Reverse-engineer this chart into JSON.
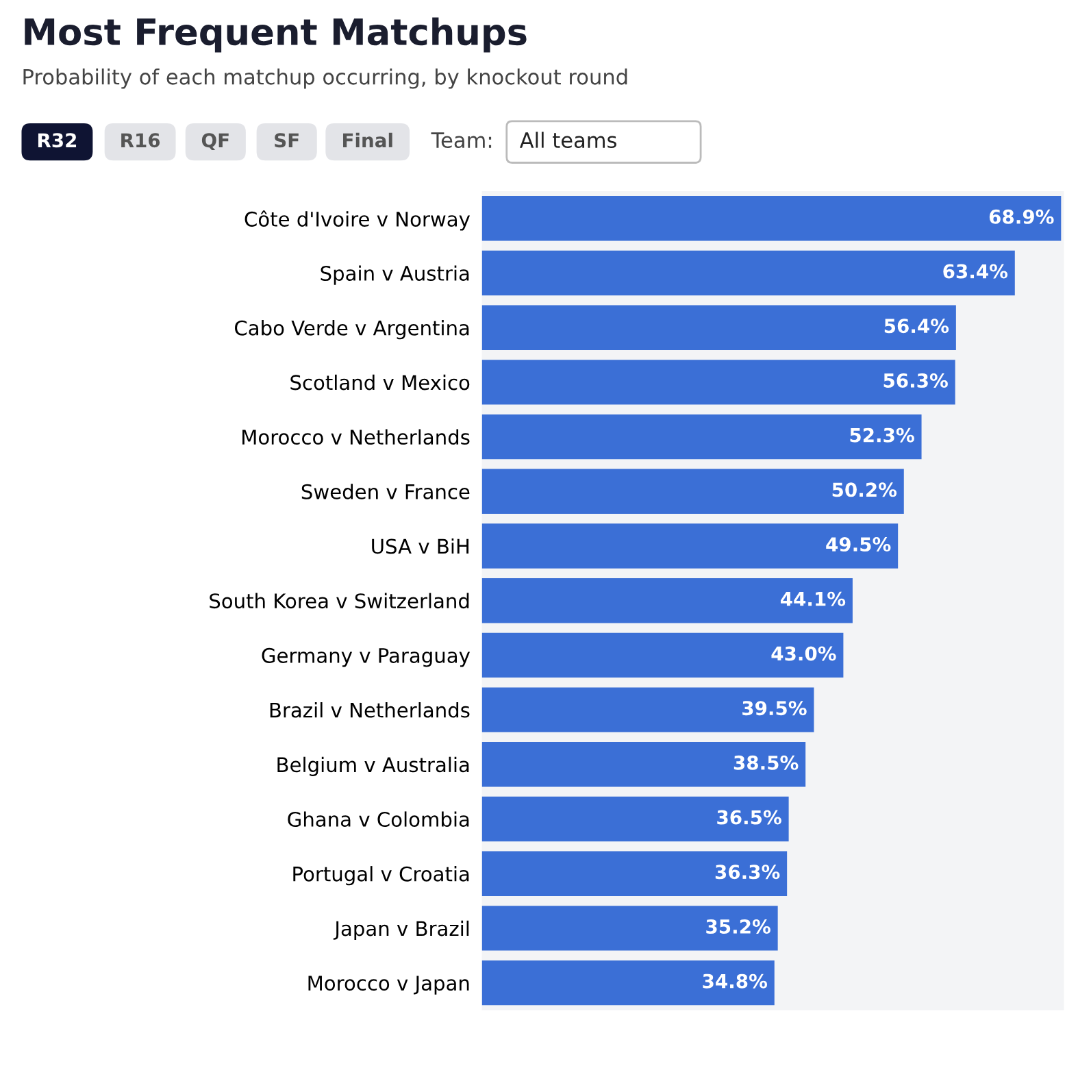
{
  "chart_data": {
    "type": "bar",
    "orientation": "horizontal",
    "title": "Most Frequent Matchups",
    "subtitle": "Probability of each matchup occurring, by knockout round",
    "annotations": [
      "R32",
      "R16",
      "QF",
      "SF",
      "Final",
      "Team:",
      "All teams"
    ],
    "categories": [
      "Côte d'Ivoire v Norway",
      "Spain v Austria",
      "Cabo Verde v Argentina",
      "Scotland v Mexico",
      "Morocco v Netherlands",
      "Sweden v France",
      "USA v BiH",
      "South Korea v Switzerland",
      "Germany v Paraguay",
      "Brazil v Netherlands",
      "Belgium v Australia",
      "Ghana v Colombia",
      "Portugal v Croatia",
      "Japan v Brazil",
      "Morocco v Japan"
    ],
    "values": [
      68.9,
      63.4,
      56.4,
      56.3,
      52.3,
      50.2,
      49.5,
      44.1,
      43.0,
      39.5,
      38.5,
      36.5,
      36.3,
      35.2,
      34.8
    ],
    "value_labels": [
      "68.9%",
      "63.4%",
      "56.4%",
      "56.3%",
      "52.3%",
      "50.2%",
      "49.5%",
      "44.1%",
      "43.0%",
      "39.5%",
      "38.5%",
      "36.5%",
      "36.3%",
      "35.2%",
      "34.8%"
    ],
    "color": "#3b6fd6",
    "tick_labels": "y",
    "grid": false,
    "legend": false
  }
}
